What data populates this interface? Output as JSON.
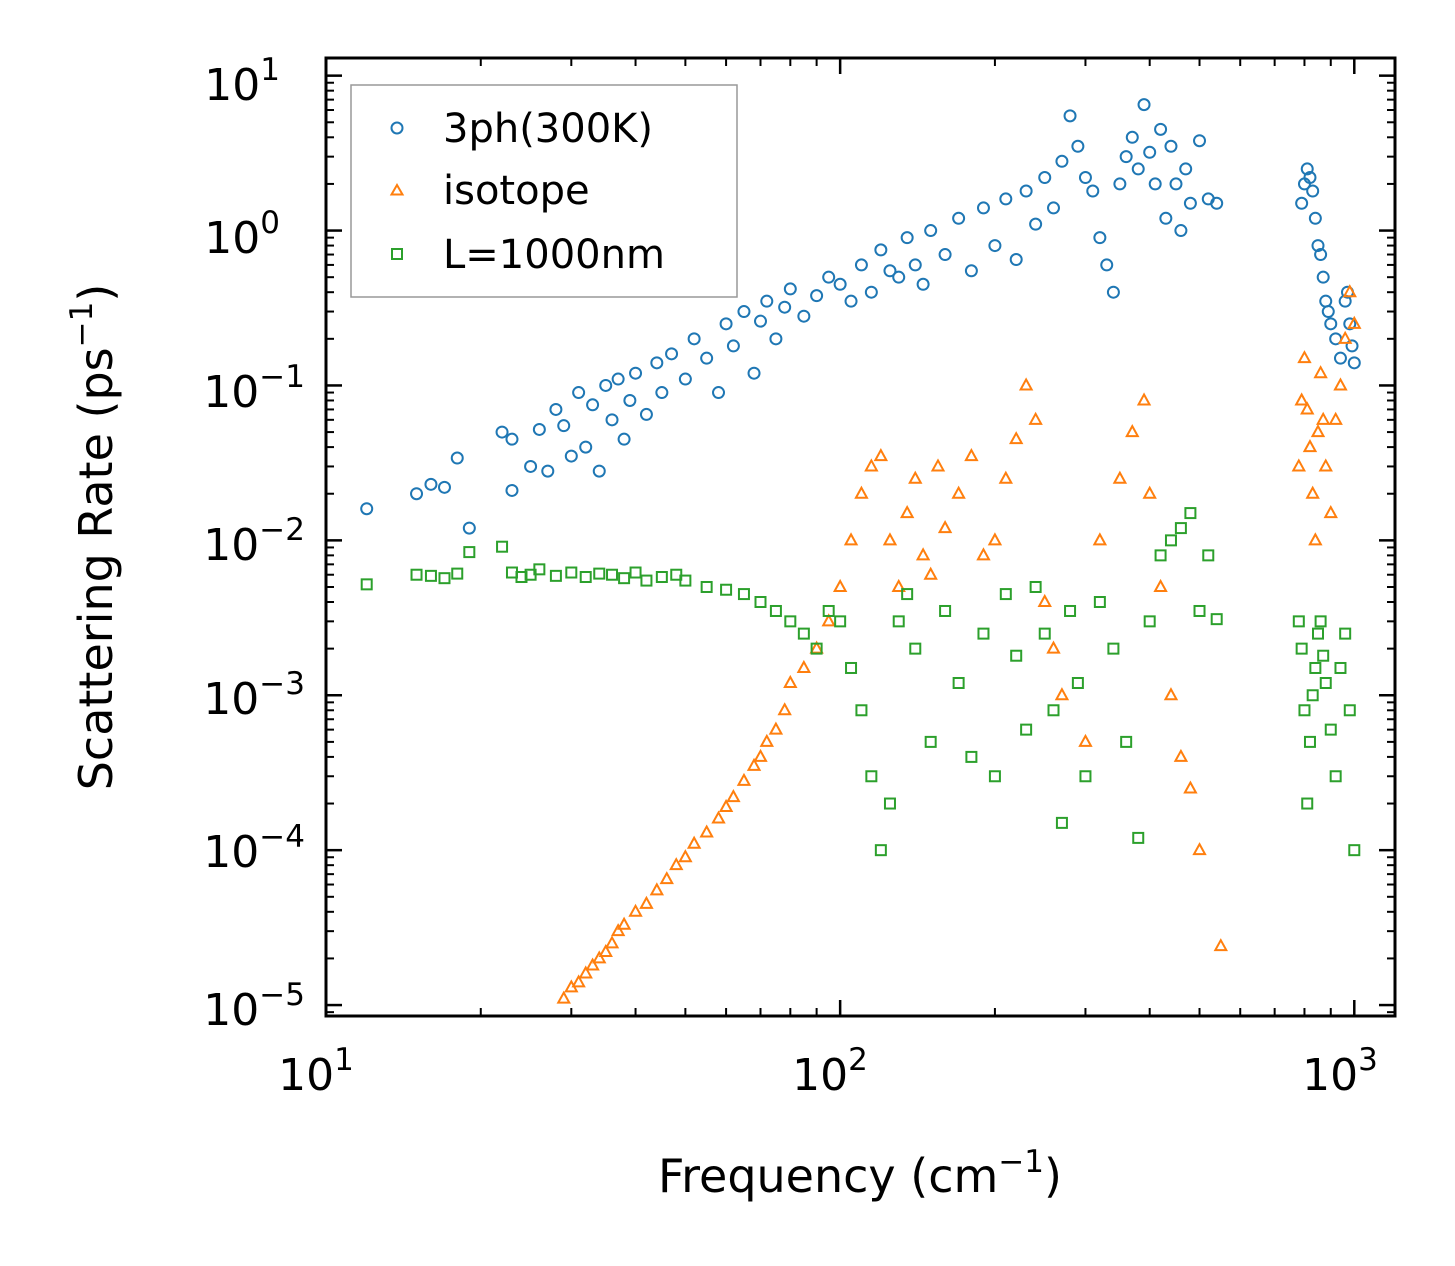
{
  "chart_data": {
    "type": "scatter",
    "xscale": "log",
    "yscale": "log",
    "xlabel": "Frequency (cm",
    "xlabel_sup": "−1",
    "xlabel_close": ")",
    "ylabel": "Scattering Rate (ps",
    "ylabel_sup": "−1",
    "ylabel_close": ")",
    "xlim": [
      10,
      1200
    ],
    "ylim": [
      8.5e-06,
      13
    ],
    "x_ticks": [
      {
        "value": 10,
        "base": "10",
        "exp": "1"
      },
      {
        "value": 100,
        "base": "10",
        "exp": "2"
      },
      {
        "value": 1000,
        "base": "10",
        "exp": "3"
      }
    ],
    "y_ticks": [
      {
        "value": 1e-05,
        "base": "10",
        "exp": "−5"
      },
      {
        "value": 0.0001,
        "base": "10",
        "exp": "−4"
      },
      {
        "value": 0.001,
        "base": "10",
        "exp": "−3"
      },
      {
        "value": 0.01,
        "base": "10",
        "exp": "−2"
      },
      {
        "value": 0.1,
        "base": "10",
        "exp": "−1"
      },
      {
        "value": 1,
        "base": "10",
        "exp": "0"
      },
      {
        "value": 10,
        "base": "10",
        "exp": "1"
      }
    ],
    "legend_position": "top-left",
    "series": [
      {
        "name": "3ph(300K)",
        "marker": "circle",
        "color": "#1f77b4",
        "x": [
          12,
          15,
          16,
          17,
          18,
          19,
          22,
          23,
          23,
          25,
          26,
          27,
          28,
          29,
          30,
          31,
          32,
          33,
          34,
          35,
          36,
          37,
          38,
          39,
          40,
          42,
          44,
          45,
          47,
          50,
          52,
          55,
          58,
          60,
          62,
          65,
          68,
          70,
          72,
          75,
          78,
          80,
          85,
          90,
          95,
          100,
          105,
          110,
          115,
          120,
          125,
          130,
          135,
          140,
          145,
          150,
          160,
          170,
          180,
          190,
          200,
          210,
          220,
          230,
          240,
          250,
          260,
          270,
          280,
          290,
          300,
          310,
          320,
          330,
          340,
          350,
          360,
          370,
          380,
          390,
          400,
          410,
          420,
          430,
          440,
          450,
          460,
          470,
          480,
          500,
          520,
          540,
          790,
          800,
          810,
          820,
          830,
          840,
          850,
          860,
          870,
          880,
          890,
          900,
          920,
          940,
          960,
          970,
          980,
          990,
          1000
        ],
        "y": [
          0.016,
          0.02,
          0.023,
          0.022,
          0.034,
          0.012,
          0.05,
          0.021,
          0.045,
          0.03,
          0.052,
          0.028,
          0.07,
          0.055,
          0.035,
          0.09,
          0.04,
          0.075,
          0.028,
          0.1,
          0.06,
          0.11,
          0.045,
          0.08,
          0.12,
          0.065,
          0.14,
          0.09,
          0.16,
          0.11,
          0.2,
          0.15,
          0.09,
          0.25,
          0.18,
          0.3,
          0.12,
          0.26,
          0.35,
          0.2,
          0.32,
          0.42,
          0.28,
          0.38,
          0.5,
          0.45,
          0.35,
          0.6,
          0.4,
          0.75,
          0.55,
          0.5,
          0.9,
          0.6,
          0.45,
          1.0,
          0.7,
          1.2,
          0.55,
          1.4,
          0.8,
          1.6,
          0.65,
          1.8,
          1.1,
          2.2,
          1.4,
          2.8,
          5.5,
          3.5,
          2.2,
          1.8,
          0.9,
          0.6,
          0.4,
          2.0,
          3.0,
          4.0,
          2.5,
          6.5,
          3.2,
          2.0,
          4.5,
          1.2,
          3.5,
          2.0,
          1.0,
          2.5,
          1.5,
          3.8,
          1.6,
          1.5,
          1.5,
          2.0,
          2.5,
          2.2,
          1.8,
          1.2,
          0.8,
          0.7,
          0.5,
          0.35,
          0.3,
          0.25,
          0.2,
          0.15,
          0.35,
          0.4,
          0.25,
          0.18,
          0.14
        ]
      },
      {
        "name": "isotope",
        "marker": "triangle",
        "color": "#ff7f0e",
        "x": [
          29,
          30,
          31,
          32,
          33,
          34,
          35,
          36,
          37,
          38,
          40,
          42,
          44,
          46,
          48,
          50,
          52,
          55,
          58,
          60,
          62,
          65,
          68,
          70,
          72,
          75,
          78,
          80,
          85,
          90,
          95,
          100,
          105,
          110,
          115,
          120,
          125,
          130,
          135,
          140,
          145,
          150,
          155,
          160,
          170,
          180,
          190,
          200,
          210,
          220,
          230,
          240,
          250,
          260,
          270,
          300,
          320,
          350,
          370,
          390,
          400,
          420,
          440,
          460,
          480,
          500,
          550,
          780,
          790,
          800,
          810,
          820,
          830,
          840,
          850,
          860,
          870,
          880,
          900,
          920,
          940,
          960,
          980,
          1000
        ],
        "y": [
          1.1e-05,
          1.3e-05,
          1.4e-05,
          1.6e-05,
          1.8e-05,
          2e-05,
          2.2e-05,
          2.5e-05,
          3e-05,
          3.3e-05,
          4e-05,
          4.5e-05,
          5.5e-05,
          6.5e-05,
          8e-05,
          9e-05,
          0.00011,
          0.00013,
          0.00016,
          0.00019,
          0.00022,
          0.00028,
          0.00035,
          0.0004,
          0.0005,
          0.0006,
          0.0008,
          0.0012,
          0.0015,
          0.002,
          0.003,
          0.005,
          0.01,
          0.02,
          0.03,
          0.035,
          0.01,
          0.005,
          0.015,
          0.025,
          0.008,
          0.006,
          0.03,
          0.012,
          0.02,
          0.035,
          0.008,
          0.01,
          0.025,
          0.045,
          0.1,
          0.06,
          0.004,
          0.002,
          0.001,
          0.0005,
          0.01,
          0.025,
          0.05,
          0.08,
          0.02,
          0.005,
          0.001,
          0.0004,
          0.00025,
          0.0001,
          2.4e-05,
          0.03,
          0.08,
          0.15,
          0.07,
          0.04,
          0.02,
          0.01,
          0.05,
          0.12,
          0.06,
          0.03,
          0.015,
          0.06,
          0.1,
          0.2,
          0.4,
          0.25
        ]
      },
      {
        "name": "L=1000nm",
        "marker": "square",
        "color": "#2ca02c",
        "x": [
          12,
          15,
          16,
          17,
          18,
          19,
          22,
          23,
          24,
          25,
          26,
          28,
          30,
          32,
          34,
          36,
          38,
          40,
          42,
          45,
          48,
          50,
          55,
          60,
          65,
          70,
          75,
          80,
          85,
          90,
          95,
          100,
          105,
          110,
          115,
          120,
          125,
          130,
          135,
          140,
          150,
          160,
          170,
          180,
          190,
          200,
          210,
          220,
          230,
          240,
          250,
          260,
          270,
          280,
          290,
          300,
          320,
          340,
          360,
          380,
          400,
          420,
          440,
          460,
          480,
          500,
          520,
          540,
          780,
          790,
          800,
          810,
          820,
          830,
          840,
          850,
          860,
          870,
          880,
          900,
          920,
          940,
          960,
          980,
          1000
        ],
        "y": [
          0.0052,
          0.006,
          0.0059,
          0.0057,
          0.0061,
          0.0084,
          0.0091,
          0.0062,
          0.0058,
          0.006,
          0.0065,
          0.0059,
          0.0062,
          0.0058,
          0.0061,
          0.006,
          0.0057,
          0.0062,
          0.0055,
          0.0058,
          0.006,
          0.0055,
          0.005,
          0.0048,
          0.0045,
          0.004,
          0.0035,
          0.003,
          0.0025,
          0.002,
          0.0035,
          0.003,
          0.0015,
          0.0008,
          0.0003,
          0.0001,
          0.0002,
          0.003,
          0.0045,
          0.002,
          0.0005,
          0.0035,
          0.0012,
          0.0004,
          0.0025,
          0.0003,
          0.0045,
          0.0018,
          0.0006,
          0.005,
          0.0025,
          0.0008,
          0.00015,
          0.0035,
          0.0012,
          0.0003,
          0.004,
          0.002,
          0.0005,
          0.00012,
          0.003,
          0.008,
          0.01,
          0.012,
          0.015,
          0.0035,
          0.008,
          0.0031,
          0.003,
          0.002,
          0.0008,
          0.0002,
          0.0005,
          0.001,
          0.0015,
          0.0025,
          0.003,
          0.0018,
          0.0012,
          0.0006,
          0.0003,
          0.0015,
          0.0025,
          0.0008,
          0.0001
        ]
      }
    ]
  }
}
